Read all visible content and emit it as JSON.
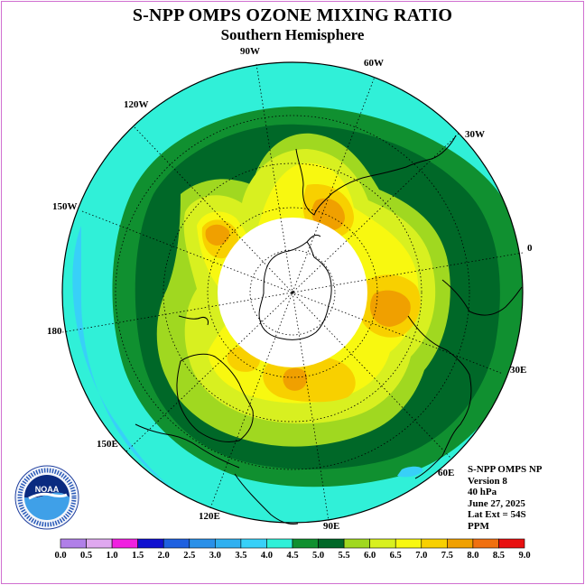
{
  "title": "S-NPP OMPS OZONE MIXING RATIO",
  "subtitle": "Southern Hemisphere",
  "info": {
    "instrument": "S-NPP OMPS NP",
    "version": "Version 8",
    "level": "40 hPa",
    "date": "June 27, 2025",
    "lat_ext": "Lat Ext = 54S",
    "units": "PPM"
  },
  "longitude_labels": [
    "90W",
    "60W",
    "30W",
    "0",
    "30E",
    "60E",
    "90E",
    "120E",
    "150E",
    "180",
    "150W",
    "120W"
  ],
  "logo_text": "NOAA",
  "colorbar": {
    "ticks": [
      "0.0",
      "0.5",
      "1.0",
      "1.5",
      "2.0",
      "2.5",
      "3.0",
      "3.5",
      "4.0",
      "4.5",
      "5.0",
      "5.5",
      "6.0",
      "6.5",
      "7.0",
      "7.5",
      "8.0",
      "8.5",
      "9.0"
    ],
    "colors": [
      "#b07fe8",
      "#dfa8ef",
      "#f020e0",
      "#1010d0",
      "#1e60e0",
      "#2a90e8",
      "#30b0f0",
      "#38d0f8",
      "#30f0d8",
      "#109030",
      "#006828",
      "#a0d820",
      "#d8f020",
      "#f8f810",
      "#f8d000",
      "#f0a000",
      "#f07010",
      "#e81010",
      "#8a6040"
    ]
  },
  "map_colors": {
    "band_3_5": "#38d0f8",
    "band_4_0": "#30f0d8",
    "band_4_5": "#109030",
    "band_5_0": "#006828",
    "band_5_5": "#a0d820",
    "band_6_0": "#d8f020",
    "band_6_5": "#f8f810",
    "band_7_0": "#f8d000",
    "band_7_5": "#f0a000",
    "no_data": "#ffffff"
  }
}
